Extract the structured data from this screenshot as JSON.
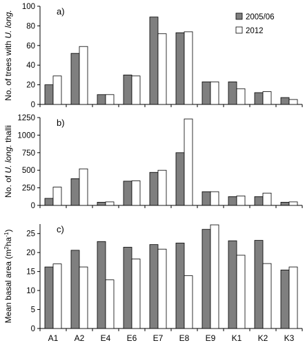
{
  "colors": {
    "bar_2005": "#7f7f7f",
    "bar_2012": "#ffffff",
    "stroke": "#000000"
  },
  "chart_data": [
    {
      "type": "bar",
      "panel_label": "a)",
      "ylabel": {
        "pre": "No. of trees with ",
        "italic": "U. long.",
        "post": ""
      },
      "ylim": [
        0,
        100
      ],
      "yticks": [
        0,
        20,
        40,
        60,
        80,
        100
      ],
      "categories": [
        "A1",
        "A2",
        "E4",
        "E6",
        "E7",
        "E8",
        "E9",
        "K1",
        "K2",
        "K3"
      ],
      "series": [
        {
          "name": "2005/06",
          "values": [
            20,
            52,
            10,
            30,
            89,
            73,
            23,
            23,
            12,
            7
          ]
        },
        {
          "name": "2012",
          "values": [
            29,
            59,
            10,
            29,
            72,
            74,
            23,
            16,
            13,
            5
          ]
        }
      ],
      "legend": "top-right"
    },
    {
      "type": "bar",
      "panel_label": "b)",
      "ylabel": {
        "pre": "No. of ",
        "italic": "U. long.",
        "post": " thalli"
      },
      "ylim": [
        0,
        1250
      ],
      "yticks": [
        0,
        250,
        500,
        750,
        1000,
        1250
      ],
      "categories": [
        "A1",
        "A2",
        "E4",
        "E6",
        "E7",
        "E8",
        "E9",
        "K1",
        "K2",
        "K3"
      ],
      "series": [
        {
          "name": "2005/06",
          "values": [
            100,
            380,
            45,
            345,
            470,
            750,
            195,
            125,
            125,
            45
          ]
        },
        {
          "name": "2012",
          "values": [
            260,
            520,
            50,
            350,
            500,
            1230,
            195,
            135,
            175,
            50
          ]
        }
      ]
    },
    {
      "type": "bar",
      "panel_label": "c)",
      "ylabel": {
        "pre": "Mean basal area (m",
        "sup1": "2",
        "mid": "ha",
        "sup2": "-1",
        "post": ")"
      },
      "ylim": [
        0,
        27.5
      ],
      "yticks": [
        0,
        5,
        10,
        15,
        20,
        25
      ],
      "categories": [
        "A1",
        "A2",
        "E4",
        "E6",
        "E7",
        "E8",
        "E9",
        "K1",
        "K2",
        "K3"
      ],
      "series": [
        {
          "name": "2005/06",
          "values": [
            16.2,
            20.6,
            22.9,
            21.4,
            22.1,
            22.5,
            26.1,
            23.1,
            23.2,
            15.4
          ]
        },
        {
          "name": "2012",
          "values": [
            17.0,
            16.2,
            12.8,
            18.3,
            20.9,
            13.9,
            27.3,
            19.3,
            17.1,
            16.2
          ]
        }
      ]
    }
  ]
}
